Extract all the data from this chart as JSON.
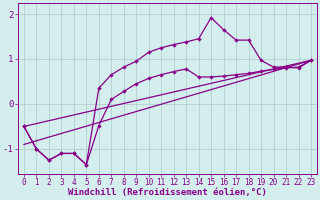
{
  "xlabel": "Windchill (Refroidissement éolien,°C)",
  "bg_color": "#d4eeee",
  "line_color": "#880088",
  "xlim": [
    -0.5,
    23.5
  ],
  "ylim": [
    -1.55,
    2.25
  ],
  "xticks": [
    0,
    1,
    2,
    3,
    4,
    5,
    6,
    7,
    8,
    9,
    10,
    11,
    12,
    13,
    14,
    15,
    16,
    17,
    18,
    19,
    20,
    21,
    22,
    23
  ],
  "yticks": [
    -1,
    0,
    1,
    2
  ],
  "line1_x": [
    0,
    1,
    2,
    3,
    4,
    5,
    6,
    7,
    8,
    9,
    10,
    11,
    12,
    13,
    14,
    15,
    16,
    17,
    18,
    19,
    20,
    21,
    22,
    23
  ],
  "line1_y": [
    -0.5,
    -1.0,
    -1.25,
    -1.1,
    -1.1,
    -1.35,
    0.35,
    0.65,
    0.82,
    0.95,
    1.15,
    1.25,
    1.32,
    1.38,
    1.45,
    1.92,
    1.65,
    1.42,
    1.42,
    0.97,
    0.82,
    0.82,
    0.8,
    0.97
  ],
  "line2_x": [
    0,
    1,
    2,
    3,
    4,
    5,
    6,
    7,
    8,
    9,
    10,
    11,
    12,
    13,
    14,
    15,
    16,
    17,
    18,
    19,
    20,
    21,
    22,
    23
  ],
  "line2_y": [
    -0.5,
    -1.0,
    -1.25,
    -1.1,
    -1.1,
    -1.35,
    -0.48,
    0.1,
    0.28,
    0.45,
    0.57,
    0.65,
    0.72,
    0.78,
    0.6,
    0.6,
    0.62,
    0.65,
    0.68,
    0.73,
    0.77,
    0.8,
    0.82,
    0.97
  ],
  "line3_x": [
    0,
    23
  ],
  "line3_y": [
    -0.5,
    0.97
  ],
  "line4_x": [
    0,
    23
  ],
  "line4_y": [
    -0.9,
    0.97
  ],
  "grid_color": "#aacccc",
  "tick_fontsize": 5.5,
  "xlabel_fontsize": 6.5
}
